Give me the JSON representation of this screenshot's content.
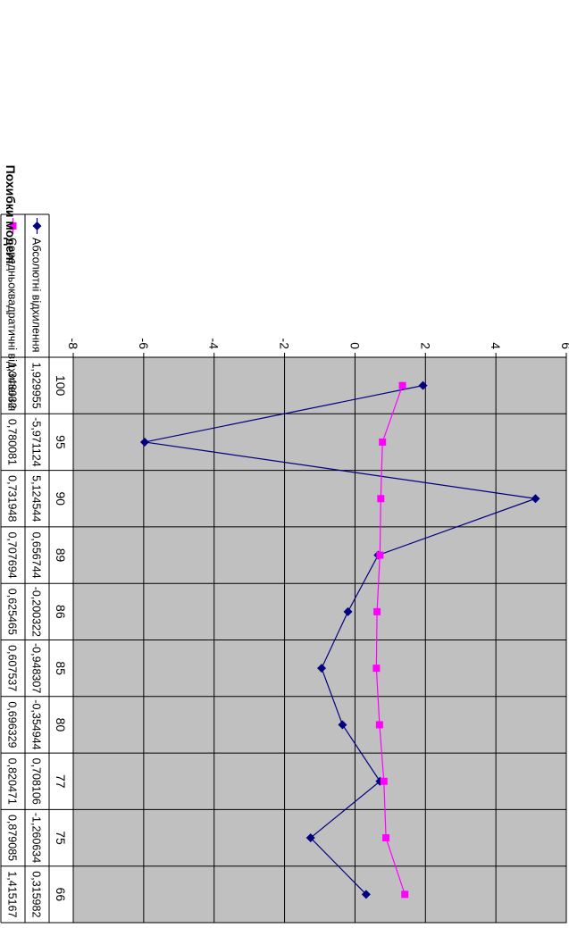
{
  "chart_data": {
    "type": "line",
    "title": "Похибки моделі",
    "categories": [
      "100",
      "95",
      "90",
      "89",
      "86",
      "85",
      "80",
      "77",
      "75",
      "66"
    ],
    "series": [
      {
        "name": "Абсолютні відхилення",
        "color": "#000080",
        "marker": "diamond",
        "values": [
          1.929955,
          -5.971124,
          5.124544,
          0.656744,
          -0.200322,
          -0.948307,
          -0.354944,
          0.708106,
          -1.260634,
          0.315982
        ],
        "labels": [
          "1,929955",
          "-5,971124",
          "5,124544",
          "0,656744",
          "-0,200322",
          "-0,948307",
          "-0,354944",
          "0,708106",
          "-1,260634",
          "0,315982"
        ]
      },
      {
        "name": "Середньоквадратичні відхилення",
        "color": "#FF00FF",
        "marker": "square",
        "values": [
          1.348032,
          0.780081,
          0.731948,
          0.707694,
          0.625465,
          0.607537,
          0.696329,
          0.820471,
          0.879085,
          1.415167
        ],
        "labels": [
          "1,348032",
          "0,780081",
          "0,731948",
          "0,707694",
          "0,625465",
          "0,607537",
          "0,696329",
          "0,820471",
          "0,879085",
          "1,415167"
        ]
      }
    ],
    "y_ticks": [
      6,
      4,
      2,
      0,
      -2,
      -4,
      -6,
      -8
    ],
    "y_tick_labels": [
      "6",
      "4",
      "2",
      "0",
      "-2",
      "-4",
      "-6",
      "-8"
    ],
    "ylim": [
      -8,
      6
    ],
    "grid": true,
    "plot_background": "#C0C0C0",
    "legend_placement": "data-table"
  }
}
